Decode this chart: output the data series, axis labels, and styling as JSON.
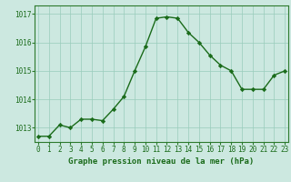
{
  "x": [
    0,
    1,
    2,
    3,
    4,
    5,
    6,
    7,
    8,
    9,
    10,
    11,
    12,
    13,
    14,
    15,
    16,
    17,
    18,
    19,
    20,
    21,
    22,
    23
  ],
  "y": [
    1012.7,
    1012.7,
    1013.1,
    1013.0,
    1013.3,
    1013.3,
    1013.25,
    1013.65,
    1014.1,
    1015.0,
    1015.85,
    1016.85,
    1016.9,
    1016.85,
    1016.35,
    1016.0,
    1015.55,
    1015.2,
    1015.0,
    1014.35,
    1014.35,
    1014.35,
    1014.85,
    1015.0
  ],
  "line_color": "#1a6b1a",
  "marker": "D",
  "marker_size": 2.2,
  "line_width": 1.0,
  "bg_color": "#cce8e0",
  "grid_color": "#99ccbb",
  "xlabel": "Graphe pression niveau de la mer (hPa)",
  "xlabel_fontsize": 6.5,
  "tick_label_fontsize": 5.5,
  "ylim": [
    1012.5,
    1017.3
  ],
  "yticks": [
    1013,
    1014,
    1015,
    1016,
    1017
  ],
  "xticks": [
    0,
    1,
    2,
    3,
    4,
    5,
    6,
    7,
    8,
    9,
    10,
    11,
    12,
    13,
    14,
    15,
    16,
    17,
    18,
    19,
    20,
    21,
    22,
    23
  ],
  "spine_color": "#2d7a2d",
  "axis_border_color": "#2d7a2d"
}
